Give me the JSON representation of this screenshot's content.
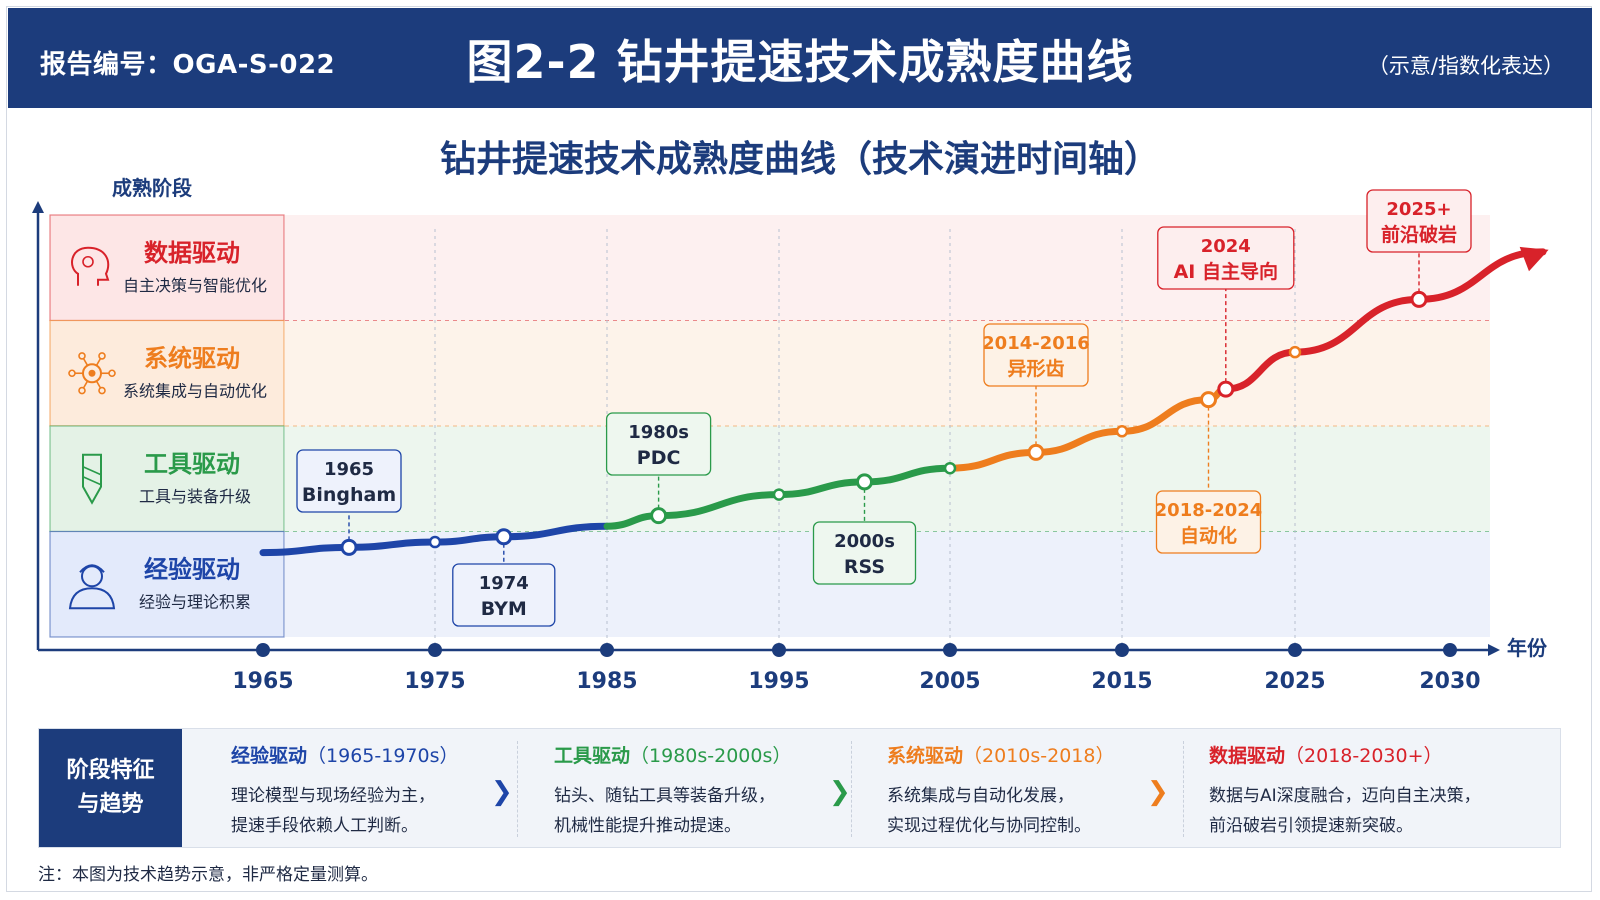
{
  "header": {
    "report_label": "报告编号：OGA-S-022",
    "title": "图2-2  钻井提速技术成熟度曲线",
    "note": "（示意/指数化表达）"
  },
  "colors": {
    "header_bg": "#1c3c7c",
    "experience": "#1e45a8",
    "tool": "#2a9a4a",
    "system": "#ee7d1e",
    "data": "#d8222a"
  },
  "chart_data": {
    "type": "line",
    "title": "钻井提速技术成熟度曲线（技术演进时间轴）",
    "ylabel": "成熟阶段",
    "xlabel": "年份",
    "x_ticks": [
      1965,
      1975,
      1985,
      1995,
      2005,
      2015,
      2025,
      2030
    ],
    "xlim": [
      1965,
      2030
    ],
    "y_scale": "maturity stage index 0-4 (experience 0-1, tool 1-2, system 2-3, data 3-4)",
    "grid": "dashed stage boundaries",
    "stages": [
      {
        "name": "数据驱动",
        "desc": "自主决策与智能优化",
        "icon": "brain-icon"
      },
      {
        "name": "系统驱动",
        "desc": "系统集成与自动优化",
        "icon": "gear-network-icon"
      },
      {
        "name": "工具驱动",
        "desc": "工具与装备升级",
        "icon": "drill-bit-icon"
      },
      {
        "name": "经验驱动",
        "desc": "经验与理论积累",
        "icon": "engineer-icon"
      }
    ],
    "curve": [
      {
        "x": 1965,
        "y": 0.8
      },
      {
        "x": 1970,
        "y": 0.85
      },
      {
        "x": 1975,
        "y": 0.9
      },
      {
        "x": 1979,
        "y": 0.95
      },
      {
        "x": 1985,
        "y": 1.05
      },
      {
        "x": 1988,
        "y": 1.15
      },
      {
        "x": 1995,
        "y": 1.35
      },
      {
        "x": 2000,
        "y": 1.47
      },
      {
        "x": 2005,
        "y": 1.6
      },
      {
        "x": 2010,
        "y": 1.75
      },
      {
        "x": 2015,
        "y": 1.95
      },
      {
        "x": 2020,
        "y": 2.25
      },
      {
        "x": 2021,
        "y": 2.35
      },
      {
        "x": 2025,
        "y": 2.7
      },
      {
        "x": 2029,
        "y": 3.2
      },
      {
        "x": 2033,
        "y": 3.65
      }
    ],
    "milestones": [
      {
        "x": 1970,
        "y": 0.85,
        "year": "1965",
        "label": "Bingham",
        "pos": "above",
        "color": "#1e45a8"
      },
      {
        "x": 1979,
        "y": 0.95,
        "year": "1974",
        "label": "BYM",
        "pos": "below",
        "color": "#1e45a8"
      },
      {
        "x": 1988,
        "y": 1.15,
        "year": "1980s",
        "label": "PDC",
        "pos": "above",
        "color": "#2a9a4a"
      },
      {
        "x": 2000,
        "y": 1.47,
        "year": "2000s",
        "label": "RSS",
        "pos": "below",
        "color": "#2a9a4a"
      },
      {
        "x": 2010,
        "y": 1.75,
        "year": "2014-2016",
        "label": "异形齿",
        "pos": "above",
        "color": "#ee7d1e"
      },
      {
        "x": 2020,
        "y": 2.25,
        "year": "2018-2024",
        "label": "自动化",
        "pos": "below",
        "color": "#ee7d1e"
      },
      {
        "x": 2021,
        "y": 2.35,
        "year": "2024",
        "label": "AI 自主导向",
        "pos": "above",
        "color": "#d8222a"
      },
      {
        "x": 2029,
        "y": 3.2,
        "year": "2025+",
        "label": "前沿破岩",
        "pos": "above",
        "color": "#d8222a"
      }
    ]
  },
  "summary": {
    "heading_line1": "阶段特征",
    "heading_line2": "与趋势",
    "columns": [
      {
        "name": "经验驱动",
        "period": "（1965-1970s）",
        "line1": "理论模型与现场经验为主，",
        "line2": "提速手段依赖人工判断。",
        "color": "#1e45a8"
      },
      {
        "name": "工具驱动",
        "period": "（1980s-2000s）",
        "line1": "钻头、随钻工具等装备升级，",
        "line2": "机械性能提升推动提速。",
        "color": "#2a9a4a"
      },
      {
        "name": "系统驱动",
        "period": "（2010s-2018）",
        "line1": "系统集成与自动化发展，",
        "line2": "实现过程优化与协同控制。",
        "color": "#ee7d1e"
      },
      {
        "name": "数据驱动",
        "period": "（2018-2030+）",
        "line1": "数据与AI深度融合，迈向自主决策，",
        "line2": "前沿破岩引领提速新突破。",
        "color": "#d8222a"
      }
    ],
    "arrow_glyph": "❯"
  },
  "footnote": "注：本图为技术趋势示意，非严格定量测算。"
}
